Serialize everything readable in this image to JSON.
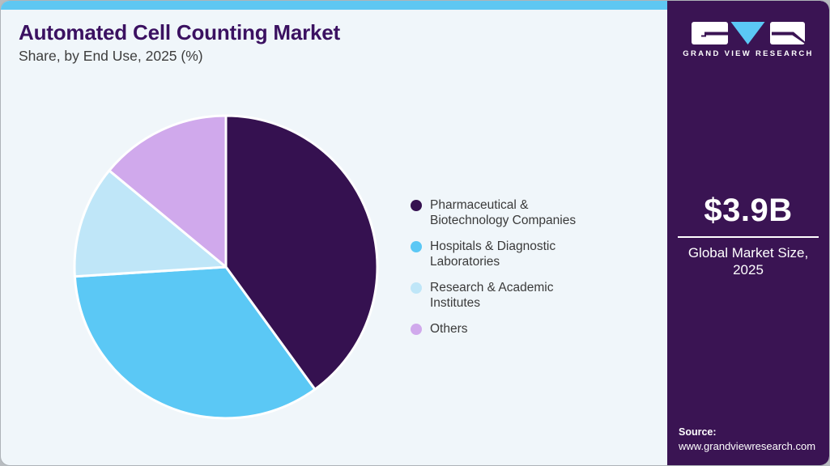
{
  "header": {
    "title": "Automated Cell Counting Market",
    "subtitle": "Share, by End Use, 2025 (%)"
  },
  "chart_data": {
    "type": "pie",
    "title": "Automated Cell Counting Market Share, by End Use, 2025 (%)",
    "unit": "%",
    "start_angle_deg": 0,
    "direction": "clockwise",
    "legend_position": "right",
    "slices": [
      {
        "label": "Pharmaceutical & Biotechnology Companies",
        "value": 40,
        "color": "#351150"
      },
      {
        "label": "Hospitals & Diagnostic Laboratories",
        "value": 34,
        "color": "#5bc8f5"
      },
      {
        "label": "Research & Academic Institutes",
        "value": 12,
        "color": "#bfe6f8"
      },
      {
        "label": "Others",
        "value": 14,
        "color": "#d0a9ec"
      }
    ]
  },
  "sidebar": {
    "logo_text": "GRAND VIEW RESEARCH",
    "market_size": "$3.9B",
    "market_size_label": "Global Market Size, 2025",
    "source_label": "Source:",
    "source_url": "www.grandviewresearch.com"
  },
  "colors": {
    "sidebar_background": "#3a1453",
    "top_strip": "#5ec7f2",
    "main_background": "#f0f6fa",
    "title_text": "#3b1161",
    "body_text": "#3a3a3a",
    "brand_blue": "#5bc8f5",
    "brand_purple": "#351150"
  }
}
